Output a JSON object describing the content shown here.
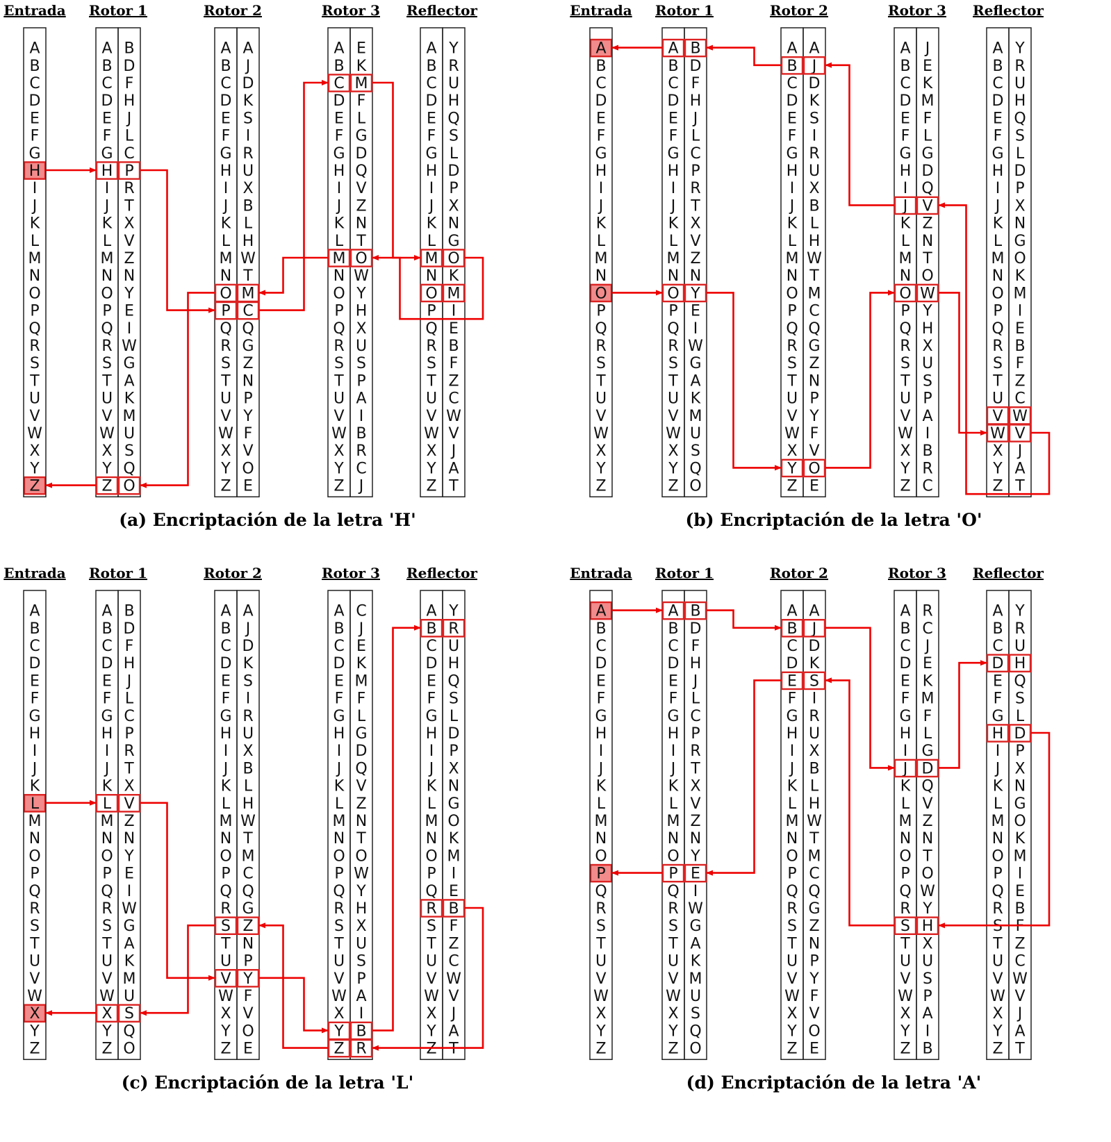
{
  "alphabet": "ABCDEFGHIJKLMNOPQRSTUVWXYZ",
  "headers": {
    "input": "Entrada",
    "rotor1": "Rotor 1",
    "rotor2": "Rotor 2",
    "rotor3": "Rotor 3",
    "reflector": "Reflector"
  },
  "colors": {
    "wire": "#ee0000",
    "box": "#dd2222",
    "input_fill": "#f28b8b",
    "column_border": "#222222"
  },
  "panels": [
    {
      "caption": "(a) Encriptación de la letra 'H'",
      "rotor1": "BDFHJLCPRTXVZNYEIWGAKMUSQO",
      "rotor2": "AJDKSIRUXBLHWTMCQGZNPYFVOE",
      "rotor3": "EKMFLGDQVZNTOWYHXUSPAIBRCJ",
      "reflector": "YRUHQSLDPXNGOKMIEBFZCWVJAT",
      "input_letter": "H",
      "output_letter": "Z",
      "forward_path": [
        "H",
        "P",
        "C",
        "M",
        "O"
      ],
      "return_path": [
        "M",
        "O",
        "Z"
      ]
    },
    {
      "caption": "(b) Encriptación de la letra 'O'",
      "rotor1": "BDFHJLCPRTXVZNYEIWGAKMUSQO",
      "rotor2": "AJDKSIRUXBLHWTMCQGZNPYFVOE",
      "rotor3": "JEKMFLGDQVZNTOWYHXUSPAIBRC",
      "reflector": "YRUHQSLDPXNGOKMIEBFZCWVJAT",
      "input_letter": "O",
      "output_letter": "A",
      "forward_path": [
        "O",
        "Y",
        "O",
        "W",
        "V"
      ],
      "return_path": [
        "J",
        "B",
        "A"
      ]
    },
    {
      "caption": "(c) Encriptación de la letra 'L'",
      "rotor1": "BDFHJLCPRTXVZNYEIWGAKMUSQO",
      "rotor2": "AJDKSIRUXBLHWTMCQGZNPYFVOE",
      "rotor3": "CJEKMFLGDQVZNTOWYHXUSPAIBR",
      "reflector": "YRUHQSLDPXNGOKMIEBFZCWVJAT",
      "input_letter": "L",
      "output_letter": "X",
      "forward_path": [
        "L",
        "V",
        "Y",
        "B",
        "R"
      ],
      "return_path": [
        "Z",
        "S",
        "X"
      ]
    },
    {
      "caption": "(d) Encriptación de la letra 'A'",
      "rotor1": "BDFHJLCPRTXVZNYEIWGAKMUSQO",
      "rotor2": "AJDKSIRUXBLHWTMCQGZNPYFVOE",
      "rotor3": "RCJEKMFLGDQVZNTOWYHXUSPAIB",
      "reflector": "YRUHQSLDPXNGOKMIEBFZCWVJAT",
      "input_letter": "A",
      "output_letter": "P",
      "forward_path": [
        "A",
        "B",
        "J",
        "D",
        "H"
      ],
      "return_path": [
        "S",
        "E",
        "P"
      ]
    }
  ]
}
